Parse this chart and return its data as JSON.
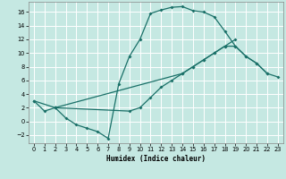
{
  "xlabel": "Humidex (Indice chaleur)",
  "background_color": "#c5e8e2",
  "grid_color": "#ffffff",
  "line_color": "#1a7068",
  "xlim": [
    -0.5,
    23.5
  ],
  "ylim": [
    -3.2,
    17.5
  ],
  "xticks": [
    0,
    1,
    2,
    3,
    4,
    5,
    6,
    7,
    8,
    9,
    10,
    11,
    12,
    13,
    14,
    15,
    16,
    17,
    18,
    19,
    20,
    21,
    22,
    23
  ],
  "yticks": [
    -2,
    0,
    2,
    4,
    6,
    8,
    10,
    12,
    14,
    16
  ],
  "curve1_x": [
    0,
    1,
    2,
    3,
    4,
    5,
    6,
    7,
    8,
    9,
    10,
    11,
    12,
    13,
    14,
    15,
    16,
    17,
    18,
    19,
    20,
    21,
    22
  ],
  "curve1_y": [
    3.0,
    1.5,
    2.0,
    0.5,
    -0.5,
    -1.0,
    -1.5,
    -2.5,
    5.5,
    9.5,
    12.0,
    15.8,
    16.3,
    16.7,
    16.8,
    16.2,
    16.0,
    15.3,
    13.2,
    11.0,
    9.5,
    8.5,
    7.0
  ],
  "curve2_x": [
    0,
    2,
    9,
    10,
    11,
    12,
    13,
    14,
    15,
    16,
    17,
    18,
    19
  ],
  "curve2_y": [
    3.0,
    2.0,
    1.5,
    2.0,
    3.5,
    5.0,
    6.0,
    7.0,
    8.0,
    9.0,
    10.0,
    11.0,
    12.0
  ],
  "curve3_x": [
    2,
    14,
    15,
    16,
    17,
    18,
    19,
    20,
    21,
    22,
    23
  ],
  "curve3_y": [
    2.0,
    7.0,
    8.0,
    9.0,
    10.0,
    11.0,
    11.0,
    9.5,
    8.5,
    7.0,
    6.5
  ]
}
